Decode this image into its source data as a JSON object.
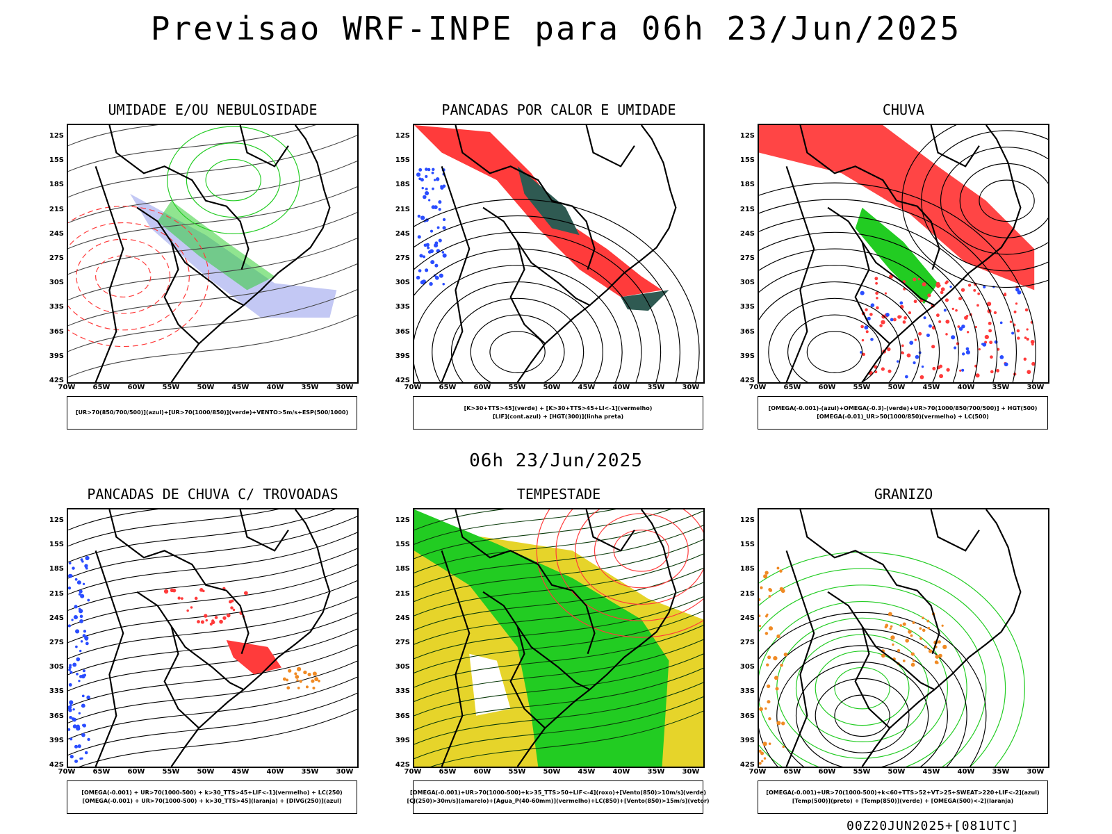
{
  "header": {
    "title": "Previsao WRF-INPE  para 06h 23/Jun/2025"
  },
  "middle": {
    "title": "06h 23/Jun/2025"
  },
  "footer": {
    "run": "00Z20JUN2025+[081UTC]"
  },
  "axes": {
    "lat_labels": [
      "12S",
      "15S",
      "18S",
      "21S",
      "24S",
      "27S",
      "30S",
      "33S",
      "36S",
      "39S",
      "42S"
    ],
    "lon_labels": [
      "70W",
      "65W",
      "60W",
      "55W",
      "50W",
      "45W",
      "40W",
      "35W",
      "30W"
    ]
  },
  "panels": [
    {
      "title": "UMIDADE E/OU NEBULOSIDADE",
      "legend": [
        "[UR>70(850/700/500)](azul)+[UR>70(1000/850)](verde)+VENTO>5m/s+ESP(500/1000)"
      ]
    },
    {
      "title": "PANCADAS POR CALOR E UMIDADE",
      "legend": [
        "[K>30+TTS>45](verde) + [K>30+TTS>45+LI<-1](vermelho)",
        "[LIF](cont.azul) + [HGT(300)](linha preta)"
      ]
    },
    {
      "title": "CHUVA",
      "legend": [
        "[OMEGA(-0.001)-(azul)+OMEGA(-0.3)-(verde)+UR>70(1000/850/700/500)] + HGT(500)",
        "[OMEGA(-0.01)_UR>50(1000/850)(vermelho) + LC(500)"
      ]
    },
    {
      "title": "PANCADAS DE CHUVA C/ TROVOADAS",
      "legend": [
        "[OMEGA(-0.001) + UR>70(1000-500) + k>30_TTS>45+LIF<-1](vermelho) + LC(250)",
        "[OMEGA(-0.001) + UR>70(1000-500) + k>30_TTS>45](laranja) + [DIVG(250)](azul)"
      ]
    },
    {
      "title": "TEMPESTADE",
      "legend": [
        "[OMEGA(-0.001)+UR>70(1000-500)+k>35_TTS>50+LIF<-4](roxo)+[Vento(850)>10m/s](verde)",
        "[CJ(250)>30m/s](amarelo)+[Agua_P(40-60mm)](vermelho)+LC(850)+[Vento(850)>15m/s](vetor)"
      ]
    },
    {
      "title": "GRANIZO",
      "legend": [
        "[OMEGA(-0.001)+UR>70(1000-500)+k<60+TTS>52+VT>25+SWEAT>220+LIF<-2](azul)",
        "[Temp(500)](preto) + [Temp(850)](verde) + [OMEGA(500)<-2](laranja)"
      ]
    }
  ],
  "colors": {
    "red": "#ff3b3b",
    "green": "#22cc22",
    "blue": "#2a4dff",
    "yellow": "#e6d42a",
    "darkgreen": "#2f5a52",
    "orange": "#f08a24",
    "lavender": "#aab0f0"
  }
}
